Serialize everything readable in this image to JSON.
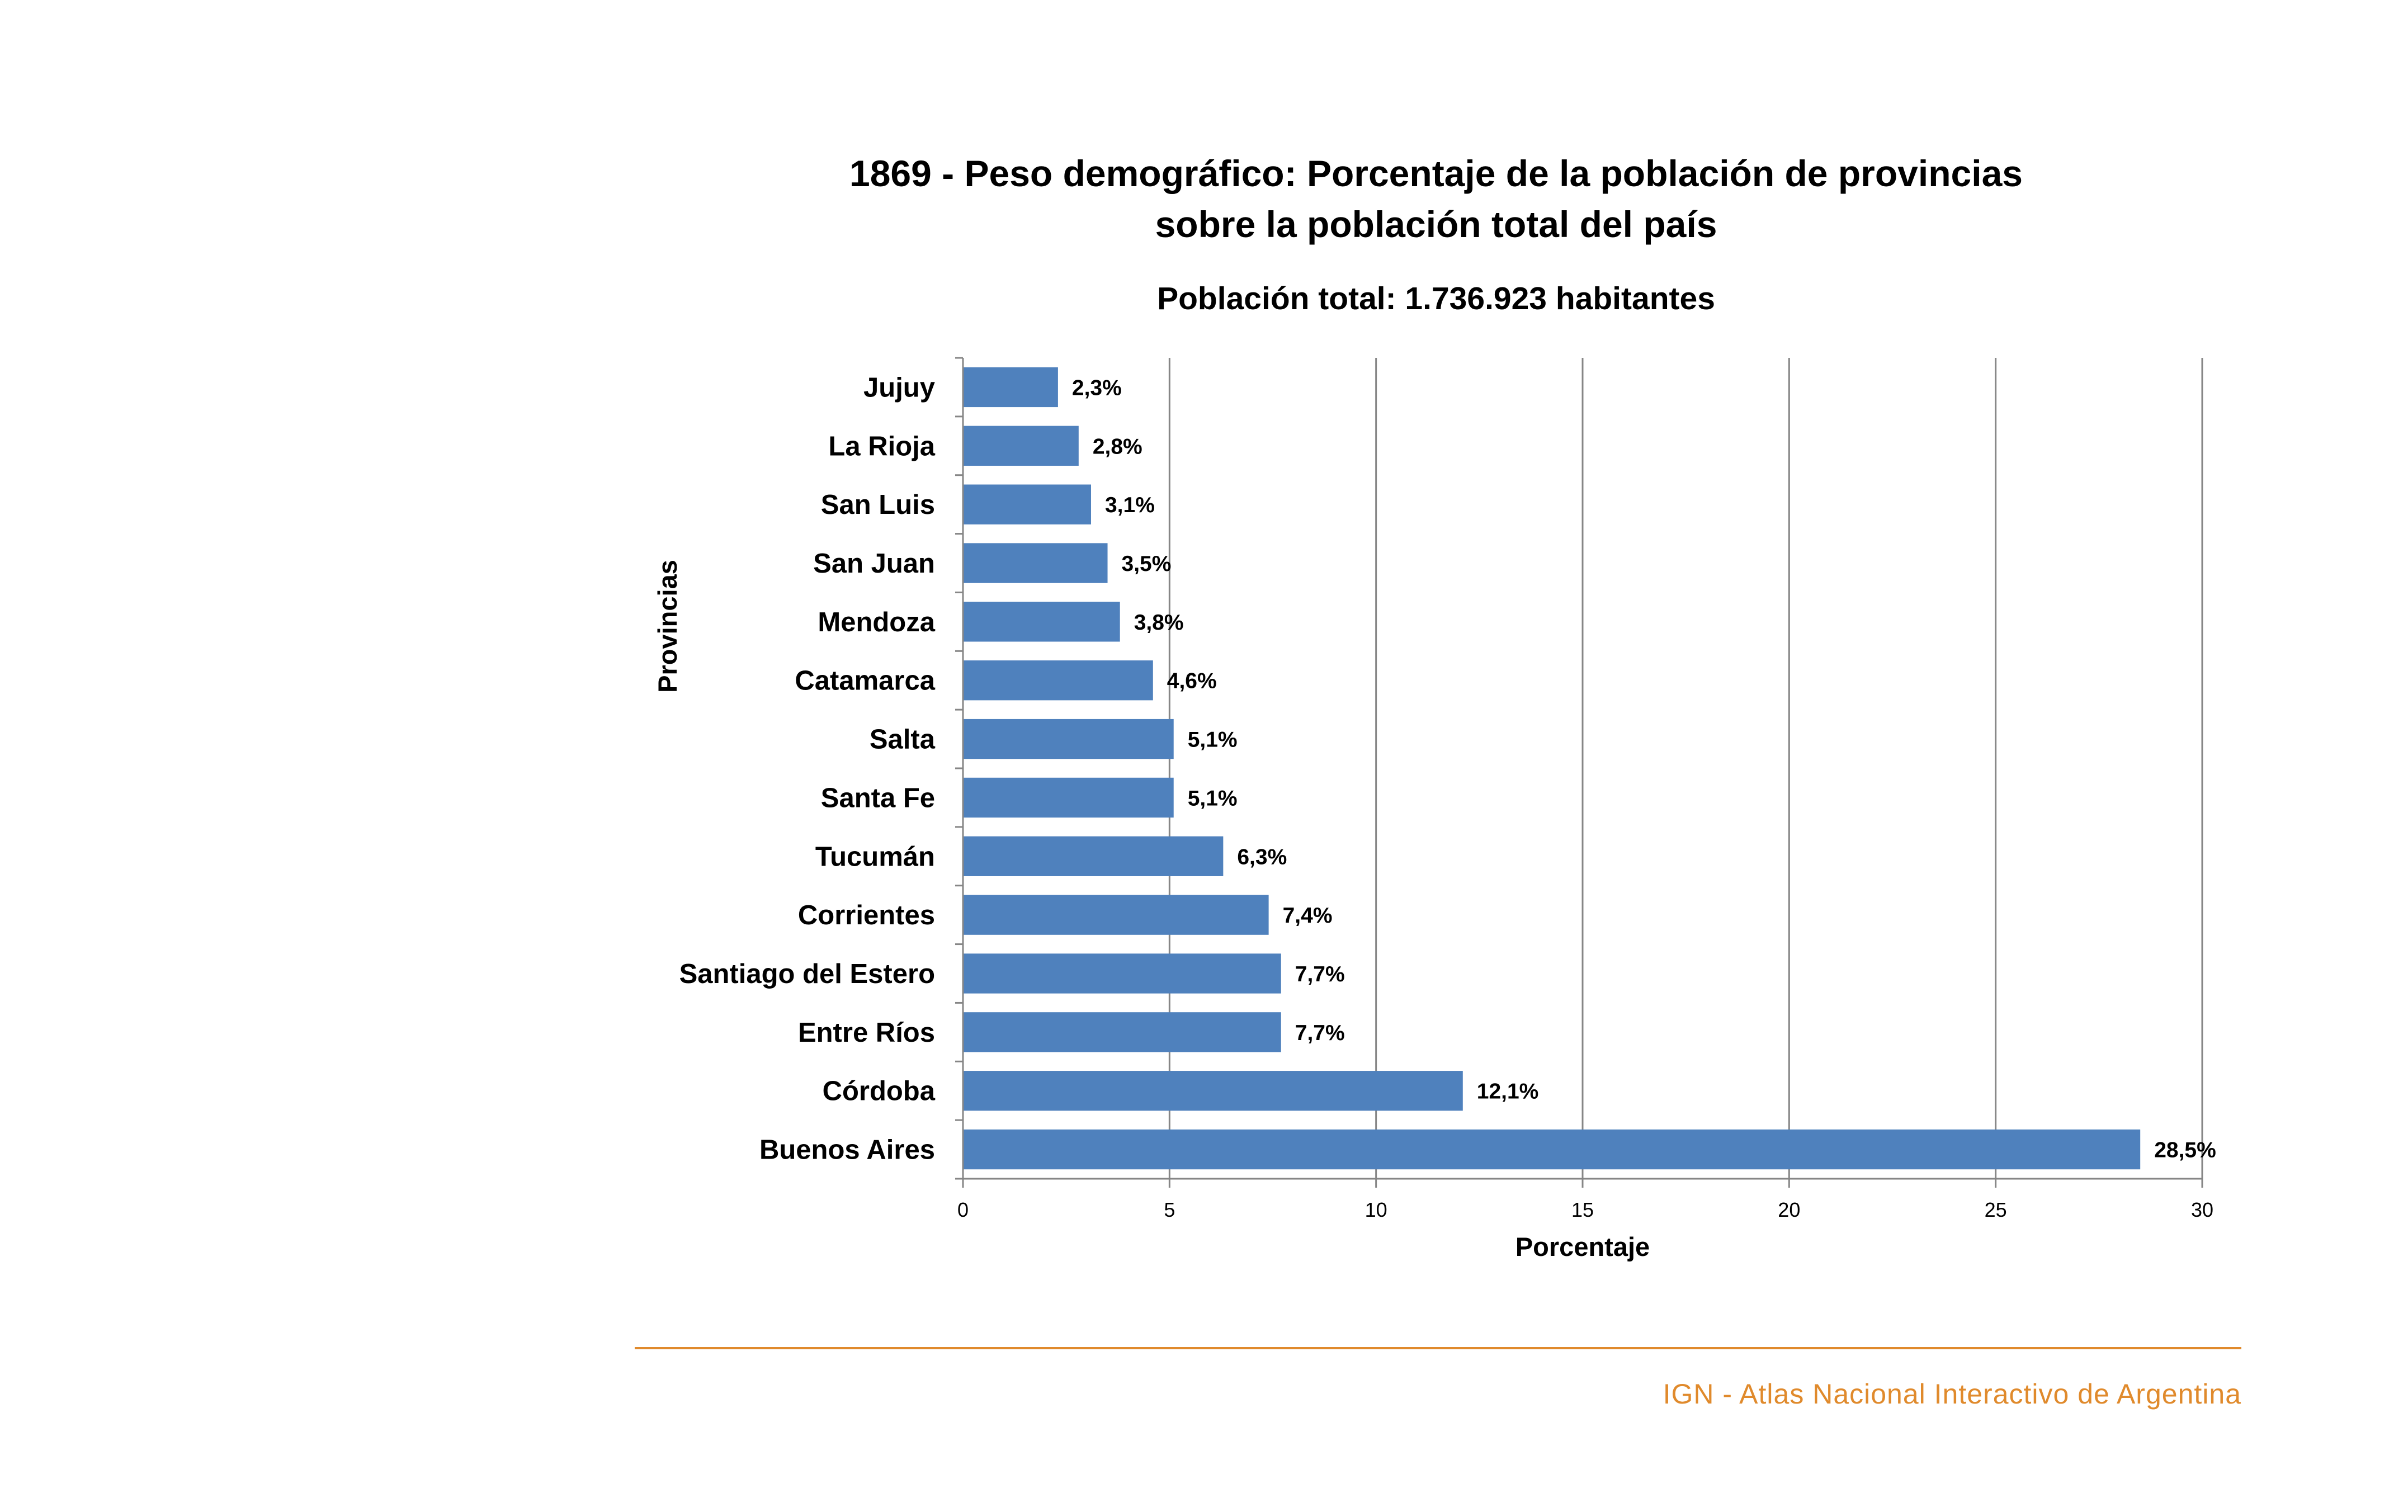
{
  "chart_data": {
    "type": "bar",
    "orientation": "horizontal",
    "title_line1": "1869 - Peso demográfico: Porcentaje de la población de provincias",
    "title_line2": "sobre la población total del país",
    "subtitle": "Población total: 1.736.923 habitantes",
    "xlabel": "Porcentaje",
    "ylabel": "Provincias",
    "xlim": [
      0,
      30
    ],
    "xticks": [
      "0",
      "5",
      "10",
      "15",
      "20",
      "25",
      "30"
    ],
    "grid": "vertical",
    "legend": "none",
    "categories": [
      "Jujuy",
      "La Rioja",
      "San Luis",
      "San Juan",
      "Mendoza",
      "Catamarca",
      "Salta",
      "Santa Fe",
      "Tucumán",
      "Corrientes",
      "Santiago del Estero",
      "Entre Ríos",
      "Córdoba",
      "Buenos Aires"
    ],
    "values": [
      2.3,
      2.8,
      3.1,
      3.5,
      3.8,
      4.6,
      5.1,
      5.1,
      6.3,
      7.4,
      7.7,
      7.7,
      12.1,
      28.5
    ],
    "value_labels": [
      "2,3%",
      "2,8%",
      "3,1%",
      "3,5%",
      "3,8%",
      "4,6%",
      "5,1%",
      "5,1%",
      "6,3%",
      "7,4%",
      "7,7%",
      "7,7%",
      "12,1%",
      "28,5%"
    ]
  },
  "colors": {
    "bar": "#4f81bd",
    "grid": "#868686",
    "axis": "#868686",
    "footer": "#e08a2c"
  },
  "footer": {
    "text": "IGN - Atlas Nacional Interactivo de Argentina"
  }
}
